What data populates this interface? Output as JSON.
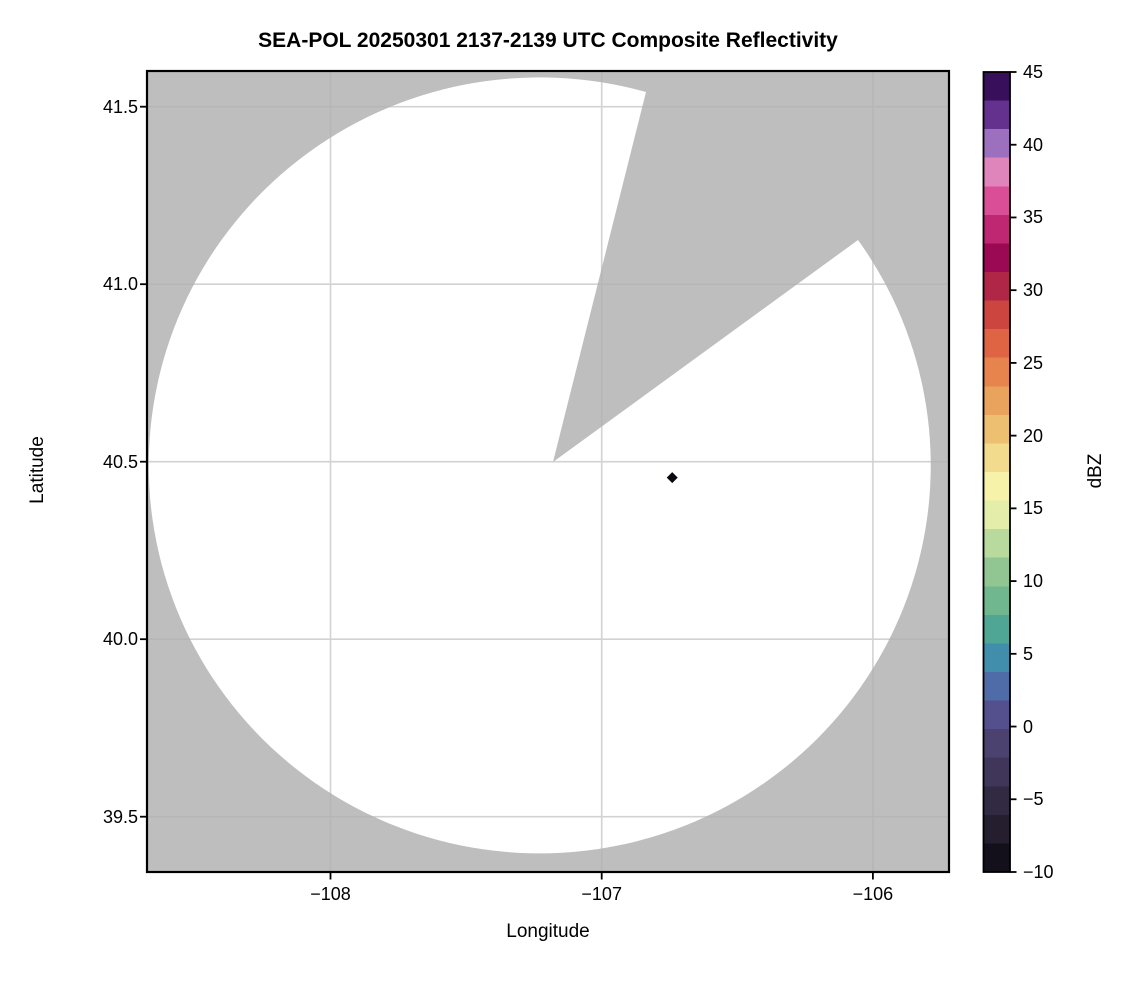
{
  "title": "SEA-POL 20250301 2137-2139 UTC Composite Reflectivity",
  "axes": {
    "xlabel": "Longitude",
    "ylabel": "Latitude",
    "x_tick_labels": [
      "−108",
      "−107",
      "−106"
    ],
    "y_tick_labels": [
      "39.5",
      "40.0",
      "40.5",
      "41.0",
      "41.5"
    ]
  },
  "colorbar": {
    "label": "dBZ",
    "tick_labels": [
      "−10",
      "−5",
      "0",
      "5",
      "10",
      "15",
      "20",
      "25",
      "30",
      "35",
      "40",
      "45"
    ]
  },
  "chart_data": {
    "type": "heatmap",
    "title": "SEA-POL 20250301 2137-2139 UTC Composite Reflectivity",
    "xlabel": "Longitude",
    "ylabel": "Latitude",
    "xlim": [
      -108.68,
      -105.72
    ],
    "ylim": [
      39.34,
      41.6
    ],
    "x_ticks": [
      -108,
      -107,
      -106
    ],
    "y_ticks": [
      39.5,
      40.0,
      40.5,
      41.0,
      41.5
    ],
    "grid": true,
    "grid_color": "#d2d2d2",
    "no_data_color": "#c1c1c1",
    "in_range_no_echo_color": "#ffffff",
    "radar": {
      "center_lon": -107.18,
      "center_lat": 40.49,
      "range_deg_lon": 1.44,
      "range_deg_lat": 1.09,
      "missing_sector_azimuth_deg": [
        15,
        53.5
      ]
    },
    "points": [
      {
        "lon": -106.74,
        "lat": 40.455,
        "shape": "diamond",
        "value_dbz": 45,
        "color": "#0a0a10"
      }
    ],
    "colorbar": {
      "label": "dBZ",
      "range": [
        -10,
        45
      ],
      "tick_values": [
        -10,
        -5,
        0,
        5,
        10,
        15,
        20,
        25,
        30,
        35,
        40,
        45
      ],
      "n_steps": 28,
      "stops": [
        {
          "v": -10,
          "c": "#0a0912"
        },
        {
          "v": -8,
          "c": "#1d1826"
        },
        {
          "v": -6,
          "c": "#2c2439"
        },
        {
          "v": -4,
          "c": "#3a3150"
        },
        {
          "v": -2,
          "c": "#463d66"
        },
        {
          "v": 0,
          "c": "#514a7c"
        },
        {
          "v": 1,
          "c": "#555293"
        },
        {
          "v": 2,
          "c": "#535c9e"
        },
        {
          "v": 3,
          "c": "#4e6fab"
        },
        {
          "v": 4,
          "c": "#4681b1"
        },
        {
          "v": 5,
          "c": "#3f93aa"
        },
        {
          "v": 6,
          "c": "#46a09b"
        },
        {
          "v": 7,
          "c": "#55a993"
        },
        {
          "v": 8,
          "c": "#65b28e"
        },
        {
          "v": 10,
          "c": "#86c090"
        },
        {
          "v": 12,
          "c": "#aad499"
        },
        {
          "v": 13,
          "c": "#c2de9f"
        },
        {
          "v": 14,
          "c": "#dae9a7"
        },
        {
          "v": 15,
          "c": "#edf1ac"
        },
        {
          "v": 16,
          "c": "#f8f6b1"
        },
        {
          "v": 17,
          "c": "#f7efa3"
        },
        {
          "v": 18,
          "c": "#f4e193"
        },
        {
          "v": 19,
          "c": "#f1d587"
        },
        {
          "v": 20,
          "c": "#eec777"
        },
        {
          "v": 21,
          "c": "#ecb86a"
        },
        {
          "v": 22,
          "c": "#eaa95f"
        },
        {
          "v": 23,
          "c": "#e99a57"
        },
        {
          "v": 24,
          "c": "#e88b4f"
        },
        {
          "v": 25,
          "c": "#e67949"
        },
        {
          "v": 26,
          "c": "#e16944"
        },
        {
          "v": 27,
          "c": "#da5941"
        },
        {
          "v": 28,
          "c": "#d04a3f"
        },
        {
          "v": 29,
          "c": "#c43b40"
        },
        {
          "v": 30,
          "c": "#b52b45"
        },
        {
          "v": 31,
          "c": "#a31a4b"
        },
        {
          "v": 32,
          "c": "#970551"
        },
        {
          "v": 33,
          "c": "#aa1660"
        },
        {
          "v": 34,
          "c": "#bc2470"
        },
        {
          "v": 35,
          "c": "#cb3480"
        },
        {
          "v": 36,
          "c": "#d84a94"
        },
        {
          "v": 37,
          "c": "#e065a7"
        },
        {
          "v": 38,
          "c": "#e181ba"
        },
        {
          "v": 39,
          "c": "#dc9cc9"
        },
        {
          "v": 39.6,
          "c": "#d0a0d2"
        },
        {
          "v": 40,
          "c": "#9f73c1"
        },
        {
          "v": 41,
          "c": "#8254a9"
        },
        {
          "v": 42,
          "c": "#653390"
        },
        {
          "v": 43,
          "c": "#4b1b73"
        },
        {
          "v": 44,
          "c": "#370f5a"
        },
        {
          "v": 45,
          "c": "#2a0a43"
        }
      ]
    }
  }
}
